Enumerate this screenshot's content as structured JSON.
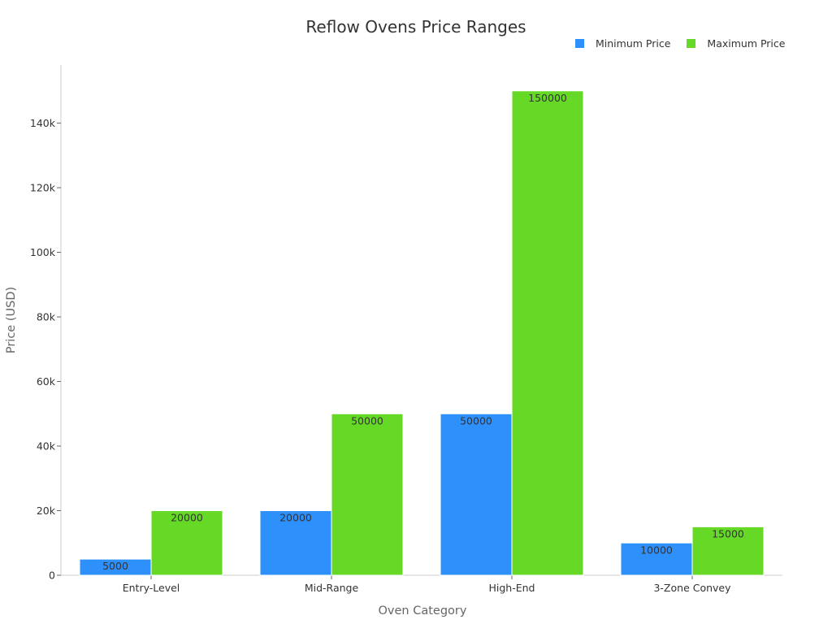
{
  "chart_data": {
    "type": "bar",
    "title": "Reflow Ovens Price Ranges",
    "xlabel": "Oven Category",
    "ylabel": "Price (USD)",
    "categories": [
      "Entry-Level",
      "Mid-Range",
      "High-End",
      "3-Zone Convey"
    ],
    "series": [
      {
        "name": "Minimum Price",
        "values": [
          5000,
          20000,
          50000,
          10000
        ],
        "color": "#2e90fa"
      },
      {
        "name": "Maximum Price",
        "values": [
          20000,
          50000,
          150000,
          15000
        ],
        "color": "#66d927"
      }
    ],
    "ylim": [
      0,
      158000
    ],
    "yticks": [
      0,
      20000,
      40000,
      60000,
      80000,
      100000,
      120000,
      140000
    ],
    "ytick_labels": [
      "0",
      "20k",
      "40k",
      "60k",
      "80k",
      "100k",
      "120k",
      "140k"
    ],
    "data_labels": true,
    "legend_position": "top-right",
    "grid": false
  }
}
